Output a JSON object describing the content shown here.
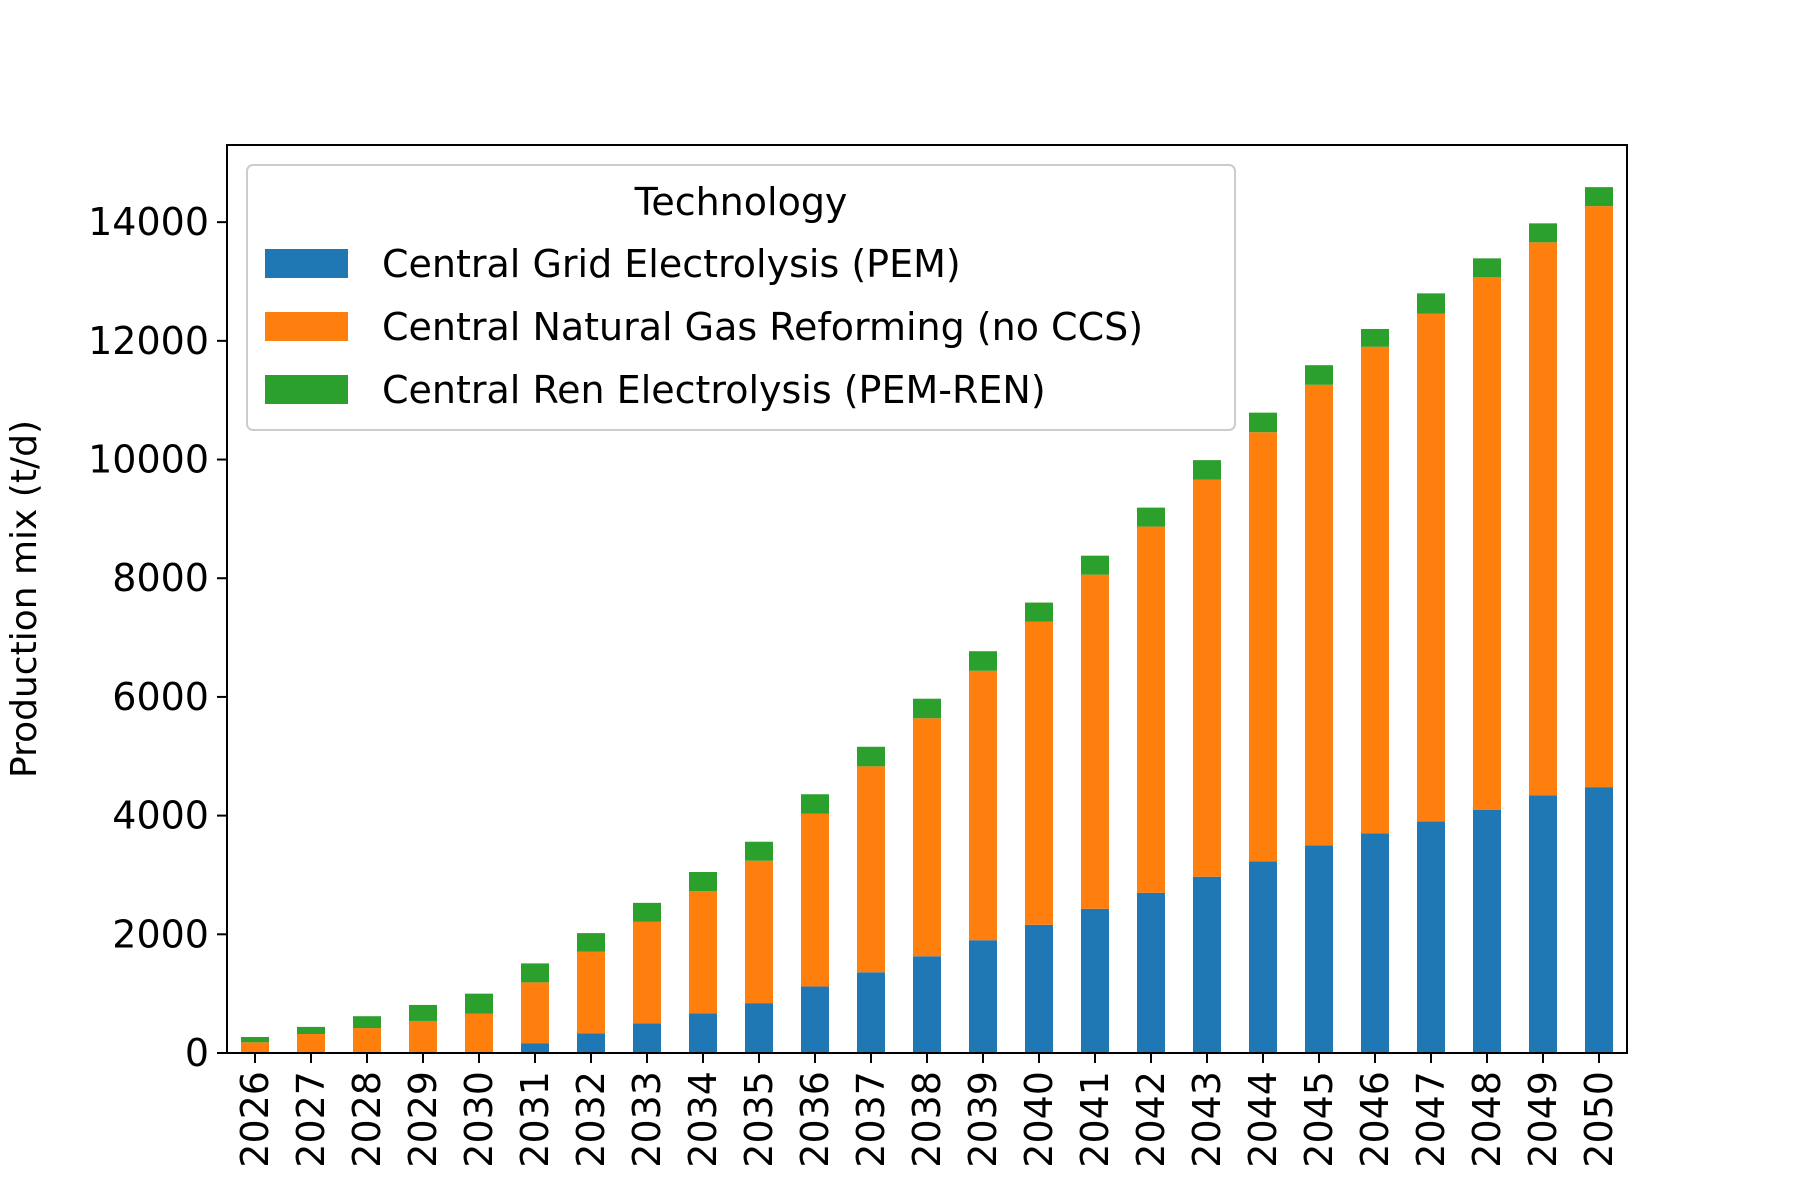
{
  "chart_data": {
    "type": "bar",
    "stacked": true,
    "title": "",
    "xlabel": "",
    "ylabel": "Production mix (t/d)",
    "ylim": [
      0,
      15300
    ],
    "yticks": [
      0,
      2000,
      4000,
      6000,
      8000,
      10000,
      12000,
      14000
    ],
    "categories": [
      "2026",
      "2027",
      "2028",
      "2029",
      "2030",
      "2031",
      "2032",
      "2033",
      "2034",
      "2035",
      "2036",
      "2037",
      "2038",
      "2039",
      "2040",
      "2041",
      "2042",
      "2043",
      "2044",
      "2045",
      "2046",
      "2047",
      "2048",
      "2049",
      "2050"
    ],
    "series": [
      {
        "name": "Central Grid Electrolysis (PEM)",
        "color": "#1f77b4",
        "values": [
          0,
          0,
          0,
          0,
          0,
          160,
          330,
          500,
          670,
          840,
          1120,
          1360,
          1630,
          1900,
          2160,
          2430,
          2700,
          2970,
          3230,
          3500,
          3700,
          3900,
          4100,
          4340,
          4480
        ]
      },
      {
        "name": "Central Natural Gas Reforming (no CCS)",
        "color": "#ff7f0e",
        "values": [
          180,
          320,
          420,
          540,
          660,
          1030,
          1380,
          1710,
          2060,
          2400,
          2910,
          3470,
          4010,
          4540,
          5110,
          5630,
          6170,
          6690,
          7230,
          7760,
          8200,
          8560,
          8970,
          9320,
          9790
        ]
      },
      {
        "name": "Central Ren Electrolysis (PEM-REN)",
        "color": "#2ca02c",
        "values": [
          90,
          120,
          200,
          270,
          340,
          320,
          310,
          320,
          320,
          320,
          330,
          330,
          330,
          330,
          320,
          320,
          320,
          330,
          330,
          330,
          300,
          340,
          320,
          320,
          320
        ]
      }
    ],
    "legend": {
      "title": "Technology",
      "placement": "upper-left"
    },
    "grid": false
  }
}
